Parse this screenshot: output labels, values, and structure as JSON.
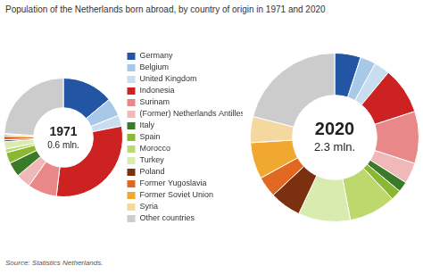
{
  "chart_data": [
    {
      "type": "doughnut",
      "title": "Population of the Netherlands born abroad, by country of origin in 1971 and 2020",
      "categories": [
        "Germany",
        "Belgium",
        "United Kingdom",
        "Indonesia",
        "Surinam",
        "(Former) Netherlands Antilles",
        "Italy",
        "Spain",
        "Morocco",
        "Turkey",
        "Poland",
        "Former Yugoslavia",
        "Former Soviet Union",
        "Syria",
        "Other countries"
      ],
      "colors": [
        "#2255a4",
        "#a8c8e8",
        "#c8ddf0",
        "#cc2222",
        "#e88888",
        "#f0b8b8",
        "#3a7a28",
        "#8ab832",
        "#bdd96e",
        "#d8ecb0",
        "#7b3010",
        "#e06820",
        "#f0a830",
        "#f5d8a0",
        "#cccccc"
      ],
      "values": [
        14,
        5,
        3,
        30,
        8,
        4,
        4,
        3,
        1,
        2,
        0.5,
        1,
        0.5,
        0.2,
        24
      ],
      "annotations": [
        "1971",
        "0.6 mln.",
        "Source: Statistics Netherlands."
      ],
      "legend": "right"
    },
    {
      "type": "doughnut",
      "categories": [
        "Germany",
        "Belgium",
        "United Kingdom",
        "Indonesia",
        "Surinam",
        "(Former) Netherlands Antilles",
        "Italy",
        "Spain",
        "Morocco",
        "Turkey",
        "Poland",
        "Former Yugoslavia",
        "Former Soviet Union",
        "Syria",
        "Other countries"
      ],
      "colors": [
        "#2255a4",
        "#a8c8e8",
        "#c8ddf0",
        "#cc2222",
        "#e88888",
        "#f0b8b8",
        "#3a7a28",
        "#8ab832",
        "#bdd96e",
        "#d8ecb0",
        "#7b3010",
        "#e06820",
        "#f0a830",
        "#f5d8a0",
        "#cccccc"
      ],
      "values": [
        5,
        3,
        3,
        9,
        10,
        4,
        2,
        2,
        9,
        10,
        6,
        4,
        7,
        5,
        21
      ],
      "annotations": [
        "2020",
        "2.3 mln."
      ],
      "legend": false
    }
  ]
}
